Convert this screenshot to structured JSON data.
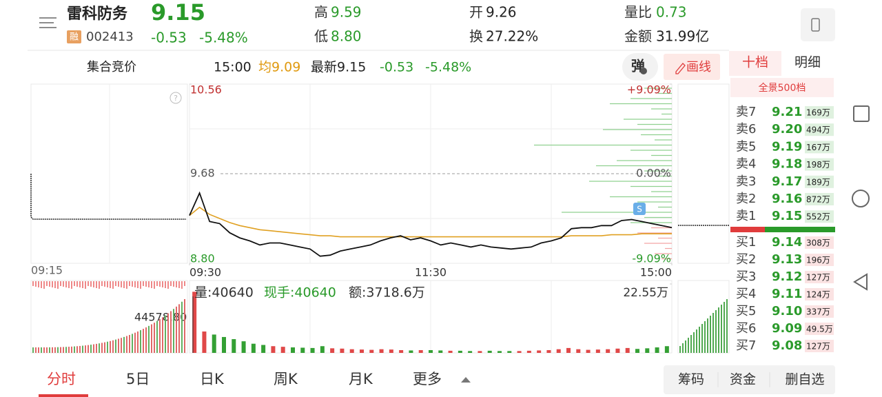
{
  "header": {
    "name": "雷科防务",
    "badge": "融",
    "code": "002413",
    "price": "9.15",
    "change": "-0.53",
    "change_pct": "-5.48%",
    "stats": [
      {
        "label": "高",
        "value": "9.59"
      },
      {
        "label": "低",
        "value": "8.80"
      },
      {
        "label": "开",
        "value": "9.26"
      },
      {
        "label": "换",
        "value": "27.22%"
      },
      {
        "label": "量比",
        "value": "0.73"
      },
      {
        "label": "金额",
        "value": "31.99亿"
      }
    ]
  },
  "subbar": {
    "label": "集合竞价",
    "time": "15:00",
    "avg": "均9.09",
    "latest": "最新9.15",
    "change": "-0.53",
    "change_pct": "-5.48%",
    "buttons": [
      "弹",
      "画线"
    ]
  },
  "book": {
    "tabs": [
      "十档",
      "明细"
    ],
    "title": "全景500档",
    "sells": [
      {
        "label": "卖7",
        "price": "9.21",
        "volume": "169万"
      },
      {
        "label": "卖6",
        "price": "9.20",
        "volume": "494万"
      },
      {
        "label": "卖5",
        "price": "9.19",
        "volume": "167万"
      },
      {
        "label": "卖4",
        "price": "9.18",
        "volume": "198万"
      },
      {
        "label": "卖3",
        "price": "9.17",
        "volume": "189万"
      },
      {
        "label": "卖2",
        "price": "9.16",
        "volume": "872万"
      },
      {
        "label": "卖1",
        "price": "9.15",
        "volume": "552万"
      }
    ],
    "buys": [
      {
        "label": "买1",
        "price": "9.14",
        "volume": "308万"
      },
      {
        "label": "买2",
        "price": "9.13",
        "volume": "196万"
      },
      {
        "label": "买3",
        "price": "9.12",
        "volume": "127万"
      },
      {
        "label": "买4",
        "price": "9.11",
        "volume": "124万"
      },
      {
        "label": "买5",
        "price": "9.10",
        "volume": "337万"
      },
      {
        "label": "买6",
        "price": "9.09",
        "volume": "49.5万"
      },
      {
        "label": "买7",
        "price": "9.08",
        "volume": "127万"
      }
    ]
  },
  "chart_data": {
    "type": "line",
    "auction_label": "09:15",
    "xlim": [
      0,
      48
    ],
    "xticks": [
      {
        "value": 0,
        "label": "09:30"
      },
      {
        "value": 24,
        "label": "11:30"
      },
      {
        "value": 48,
        "label": "15:00"
      }
    ],
    "ylim": [
      8.8,
      10.56
    ],
    "yticks": [
      {
        "value": 10.56,
        "label": "10.56"
      },
      {
        "value": 9.68,
        "label": "9.68"
      },
      {
        "value": 8.8,
        "label": "8.80"
      }
    ],
    "y2lim": [
      -9.09,
      9.09
    ],
    "y2ticks": [
      {
        "value": 9.09,
        "label": "+9.09%"
      },
      {
        "value": 0,
        "label": "0.00%"
      },
      {
        "value": -9.09,
        "label": "-9.09%"
      }
    ],
    "series": [
      {
        "color": "#111111",
        "values": [
          9.27,
          9.49,
          9.21,
          9.19,
          9.1,
          9.05,
          9.02,
          8.98,
          9.0,
          9.0,
          8.98,
          8.96,
          8.94,
          8.87,
          8.88,
          8.92,
          8.94,
          8.96,
          8.98,
          9.02,
          9.05,
          9.07,
          9.03,
          9.05,
          9.02,
          8.98,
          9.0,
          8.98,
          8.96,
          8.98,
          8.96,
          8.95,
          8.94,
          8.95,
          8.96,
          9.0,
          9.02,
          9.05,
          9.14,
          9.15,
          9.15,
          9.17,
          9.17,
          9.22,
          9.23,
          9.21,
          9.19,
          9.17,
          9.15
        ]
      },
      {
        "color": "#e0a020",
        "values": [
          9.27,
          9.35,
          9.28,
          9.24,
          9.2,
          9.17,
          9.15,
          9.13,
          9.12,
          9.11,
          9.1,
          9.09,
          9.08,
          9.07,
          9.07,
          9.06,
          9.06,
          9.06,
          9.06,
          9.06,
          9.06,
          9.06,
          9.06,
          9.06,
          9.06,
          9.06,
          9.06,
          9.06,
          9.06,
          9.06,
          9.06,
          9.06,
          9.06,
          9.06,
          9.06,
          9.06,
          9.06,
          9.06,
          9.07,
          9.07,
          9.07,
          9.07,
          9.08,
          9.08,
          9.08,
          9.09,
          9.09,
          9.09,
          9.09
        ]
      }
    ],
    "volume": {
      "label": "量:40640",
      "hand": "现手:40640",
      "amount": "额:3718.6万",
      "left_label": "44578.80",
      "up_color": "#e04848",
      "down_color": "#34a034",
      "ylim": [
        0,
        225500
      ],
      "yticks": [
        {
          "value": 225500,
          "label": "22.55万"
        }
      ],
      "values": [
        200000,
        70000,
        60000,
        52000,
        45000,
        38000,
        30000,
        26000,
        22000,
        20000,
        18000,
        17000,
        16000,
        22000,
        15000,
        14000,
        12000,
        11000,
        10000,
        12000,
        11000,
        9000,
        8000,
        9000,
        9000,
        8000,
        7000,
        7000,
        6000,
        6000,
        7000,
        6000,
        6000,
        6000,
        7000,
        8000,
        9000,
        12000,
        16000,
        12000,
        10000,
        11000,
        12000,
        14000,
        16000,
        13000,
        15000,
        18000,
        22000
      ]
    }
  },
  "tabs": [
    "分时",
    "5日",
    "日K",
    "周K",
    "月K",
    "更多"
  ],
  "actions": [
    "筹码",
    "资金",
    "删自选"
  ]
}
